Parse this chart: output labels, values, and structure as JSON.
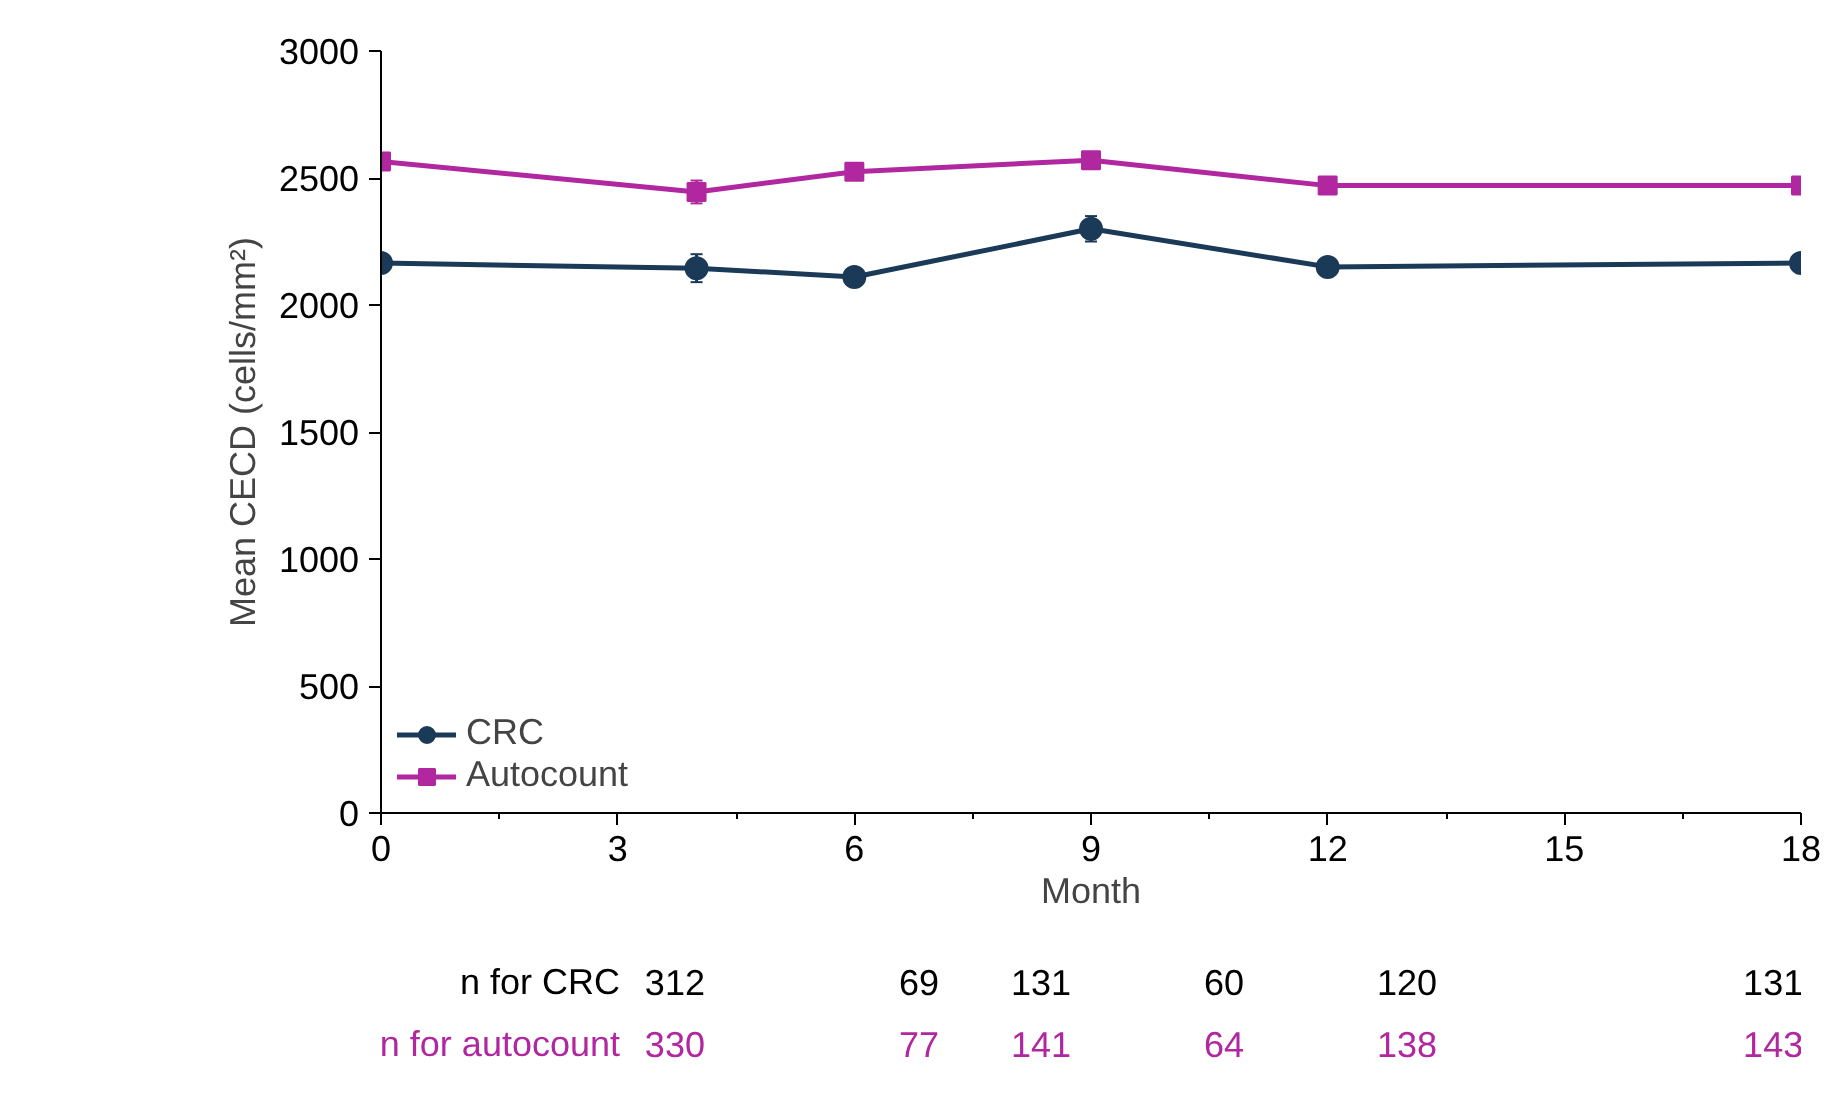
{
  "chart_data": {
    "type": "line",
    "xlabel": "Month",
    "ylabel": "Mean CECD (cells/mm²)",
    "x": [
      0,
      4,
      6,
      9,
      12,
      18
    ],
    "series": [
      {
        "name": "CRC",
        "color": "#1b3a57",
        "marker": "circle",
        "values": [
          2165,
          2145,
          2110,
          2300,
          2150,
          2165
        ],
        "errors": [
          25,
          55,
          30,
          50,
          30,
          30
        ]
      },
      {
        "name": "Autocount",
        "color": "#b0279f",
        "marker": "square",
        "values": [
          2565,
          2445,
          2525,
          2570,
          2470,
          2470
        ],
        "errors": [
          15,
          45,
          15,
          30,
          15,
          15
        ]
      }
    ],
    "xlim": [
      0,
      18
    ],
    "xticks": [
      0,
      3,
      6,
      9,
      12,
      15,
      18
    ],
    "ylim": [
      0,
      3000
    ],
    "yticks": [
      0,
      500,
      1000,
      1500,
      2000,
      2500,
      3000
    ],
    "grid": false,
    "legend": "bottom left",
    "annotations": [
      "n for CRC",
      "312",
      "69",
      "131",
      "60",
      "120",
      "131",
      "n for autocount",
      "330",
      "77",
      "141",
      "64",
      "138",
      "143"
    ]
  }
}
